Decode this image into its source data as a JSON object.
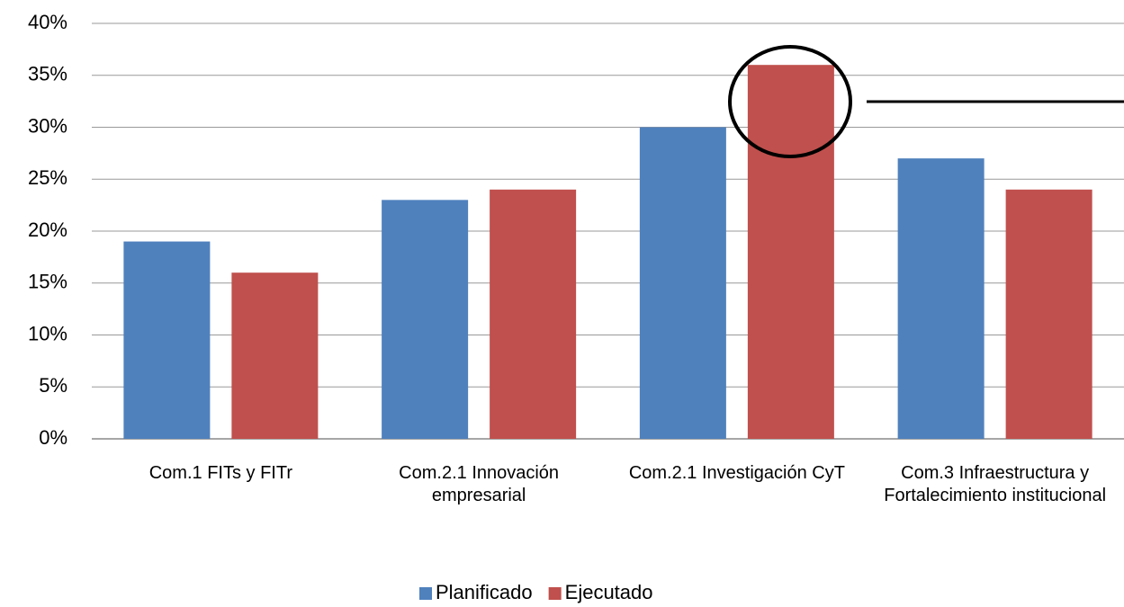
{
  "chart_data": {
    "type": "bar",
    "categories": [
      "Com.1 FITs y FITr",
      "Com.2.1 Innovación empresarial",
      "Com.2.1 Investigación CyT",
      "Com.3 Infraestructura y Fortalecimiento institucional"
    ],
    "series": [
      {
        "name": "Planificado",
        "color": "#4f81bd",
        "values": [
          19,
          23,
          30,
          27
        ]
      },
      {
        "name": "Ejecutado",
        "color": "#c0504d",
        "values": [
          16,
          24,
          36,
          24
        ]
      }
    ],
    "ylim": [
      0,
      40
    ],
    "yticks": [
      {
        "value": 0,
        "label": "0%"
      },
      {
        "value": 5,
        "label": "5%"
      },
      {
        "value": 10,
        "label": "10%"
      },
      {
        "value": 15,
        "label": "15%"
      },
      {
        "value": 20,
        "label": "20%"
      },
      {
        "value": 25,
        "label": "25%"
      },
      {
        "value": 30,
        "label": "30%"
      },
      {
        "value": 35,
        "label": "35%"
      },
      {
        "value": 40,
        "label": "40%"
      }
    ],
    "grid": true,
    "legend": "bottom"
  }
}
